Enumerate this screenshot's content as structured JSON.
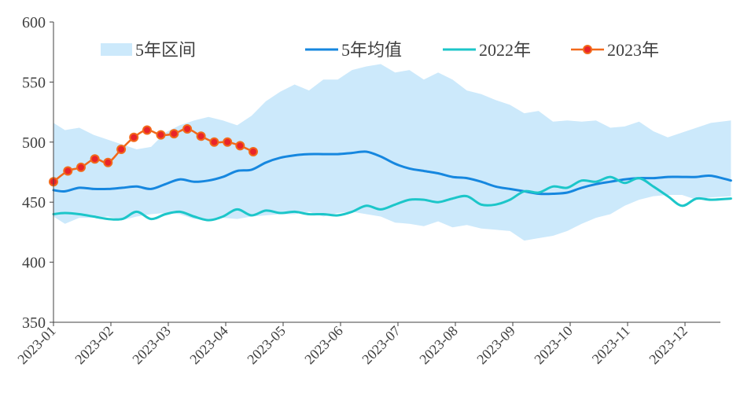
{
  "chart_data": {
    "type": "line",
    "title": "",
    "xlabel": "",
    "ylabel": "",
    "ylim": [
      350,
      600
    ],
    "yticks": [
      350,
      400,
      450,
      500,
      550,
      600
    ],
    "xlim": [
      0,
      11.8
    ],
    "xticks": [
      "2023-01",
      "2023-02",
      "2023-03",
      "2023-04",
      "2023-05",
      "2023-06",
      "2023-07",
      "2023-08",
      "2023-09",
      "2023-10",
      "2023-11",
      "2023-12"
    ],
    "grid": false,
    "legend": {
      "position": "top",
      "entries": [
        "5年区间",
        "5年均值",
        "2022年",
        "2023年"
      ]
    },
    "range_band": {
      "name": "5年区间",
      "color": "#cce9fb",
      "x": [
        0,
        0.2,
        0.45,
        0.7,
        0.95,
        1.2,
        1.45,
        1.7,
        1.95,
        2.2,
        2.45,
        2.7,
        2.95,
        3.2,
        3.45,
        3.7,
        3.95,
        4.2,
        4.45,
        4.7,
        4.95,
        5.2,
        5.45,
        5.7,
        5.95,
        6.2,
        6.45,
        6.7,
        6.95,
        7.2,
        7.45,
        7.7,
        7.95,
        8.2,
        8.45,
        8.7,
        8.95,
        9.2,
        9.45,
        9.7,
        9.95,
        10.2,
        10.45,
        10.7,
        10.95,
        11.2,
        11.45,
        11.8
      ],
      "upper": [
        516,
        510,
        512,
        506,
        502,
        498,
        494,
        496,
        508,
        514,
        518,
        521,
        518,
        514,
        522,
        534,
        542,
        548,
        543,
        552,
        552,
        560,
        563,
        565,
        558,
        560,
        552,
        558,
        552,
        543,
        540,
        535,
        531,
        524,
        526,
        517,
        518,
        517,
        518,
        512,
        513,
        517,
        509,
        504,
        508,
        512,
        516,
        518
      ],
      "lower": [
        438,
        432,
        437,
        437,
        438,
        435,
        438,
        440,
        441,
        440,
        436,
        436,
        437,
        436,
        438,
        439,
        440,
        440,
        442,
        438,
        441,
        442,
        440,
        438,
        433,
        432,
        430,
        434,
        429,
        431,
        428,
        427,
        426,
        418,
        420,
        422,
        426,
        432,
        437,
        440,
        447,
        452,
        455,
        456,
        456,
        452,
        454,
        455
      ]
    },
    "series": [
      {
        "name": "5年均值",
        "color": "#1687df",
        "marker": false,
        "x": [
          0,
          0.2,
          0.45,
          0.7,
          0.95,
          1.2,
          1.45,
          1.7,
          1.95,
          2.2,
          2.45,
          2.7,
          2.95,
          3.2,
          3.45,
          3.7,
          3.95,
          4.2,
          4.45,
          4.7,
          4.95,
          5.2,
          5.45,
          5.7,
          5.95,
          6.2,
          6.45,
          6.7,
          6.95,
          7.2,
          7.45,
          7.7,
          7.95,
          8.2,
          8.45,
          8.7,
          8.95,
          9.2,
          9.45,
          9.7,
          9.95,
          10.2,
          10.45,
          10.7,
          10.95,
          11.2,
          11.45,
          11.8
        ],
        "values": [
          460,
          459,
          462,
          461,
          461,
          462,
          463,
          461,
          465,
          469,
          467,
          468,
          471,
          476,
          477,
          483,
          487,
          489,
          490,
          490,
          490,
          491,
          492,
          488,
          482,
          478,
          476,
          474,
          471,
          470,
          467,
          463,
          461,
          459,
          457,
          457,
          458,
          462,
          465,
          467,
          469,
          470,
          470,
          471,
          471,
          471,
          472,
          468
        ]
      },
      {
        "name": "2022年",
        "color": "#1cc6c9",
        "marker": false,
        "x": [
          0,
          0.2,
          0.45,
          0.7,
          0.95,
          1.2,
          1.45,
          1.7,
          1.95,
          2.2,
          2.45,
          2.7,
          2.95,
          3.2,
          3.45,
          3.7,
          3.95,
          4.2,
          4.45,
          4.7,
          4.95,
          5.2,
          5.45,
          5.7,
          5.95,
          6.2,
          6.45,
          6.7,
          6.95,
          7.2,
          7.45,
          7.7,
          7.95,
          8.2,
          8.45,
          8.7,
          8.95,
          9.2,
          9.45,
          9.7,
          9.95,
          10.2,
          10.45,
          10.7,
          10.95,
          11.2,
          11.45,
          11.8
        ],
        "values": [
          440,
          441,
          440,
          438,
          436,
          436,
          442,
          436,
          440,
          442,
          438,
          435,
          438,
          444,
          439,
          443,
          441,
          442,
          440,
          440,
          439,
          442,
          447,
          444,
          448,
          452,
          452,
          450,
          453,
          455,
          448,
          448,
          452,
          459,
          458,
          463,
          462,
          468,
          467,
          471,
          466,
          470,
          463,
          455,
          447,
          453,
          452,
          453
        ]
      },
      {
        "name": "2023年",
        "color": "#f26a1b",
        "marker": true,
        "marker_color": "#e8242a",
        "x": [
          0,
          0.25,
          0.48,
          0.72,
          0.95,
          1.18,
          1.4,
          1.63,
          1.87,
          2.1,
          2.33,
          2.57,
          2.8,
          3.03,
          3.25,
          3.48
        ],
        "values": [
          467,
          476,
          479,
          486,
          483,
          494,
          504,
          510,
          506,
          507,
          511,
          505,
          500,
          500,
          497,
          492
        ]
      }
    ]
  }
}
